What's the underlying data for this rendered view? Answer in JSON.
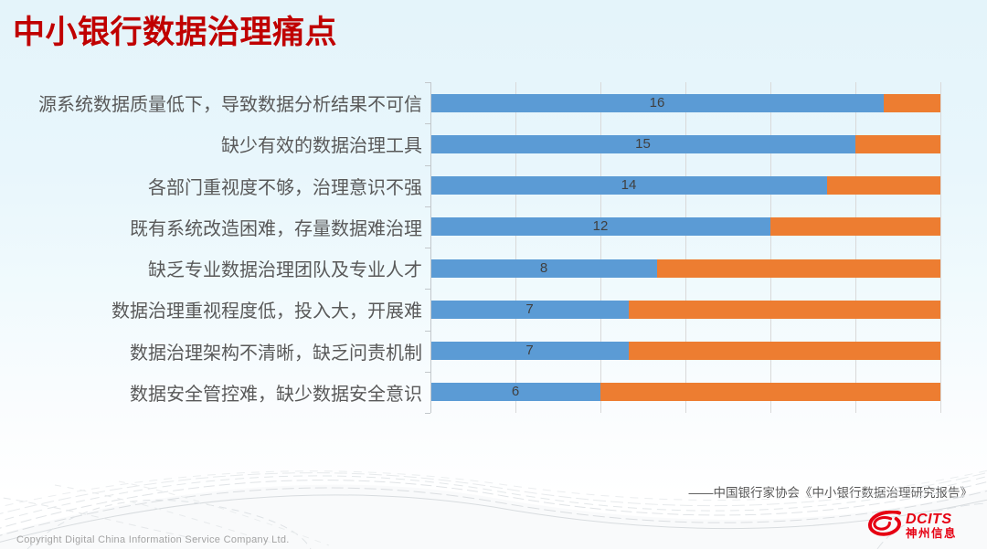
{
  "slide": {
    "title": "中小银行数据治理痛点",
    "source_citation": "——中国银行家协会《中小银行数据治理研究报告》",
    "copyright": "Copyright  Digital China Information Service Company Ltd."
  },
  "logo": {
    "brand": "DCITS",
    "brand_cn": "神州信息",
    "brand_color": "#e60012",
    "icon": "swirl-logo-icon"
  },
  "chart_data": {
    "type": "bar",
    "orientation": "horizontal",
    "stacked": true,
    "categories": [
      "源系统数据质量低下，导致数据分析结果不可信",
      "缺少有效的数据治理工具",
      "各部门重视度不够，治理意识不强",
      "既有系统改造困难，存量数据难治理",
      "缺乏专业数据治理团队及专业人才",
      "数据治理重视程度低，投入大，开展难",
      "数据治理架构不清晰，缺乏问责机制",
      "数据安全管控难，缺少数据安全意识"
    ],
    "series": [
      {
        "name": "series-1-blue",
        "color": "#5b9bd5",
        "values": [
          16,
          15,
          14,
          12,
          8,
          7,
          7,
          6
        ]
      },
      {
        "name": "series-2-orange",
        "color": "#ed7d31",
        "values": [
          2,
          3,
          4,
          6,
          10,
          11,
          11,
          12
        ]
      }
    ],
    "total": 18,
    "xlim": [
      0,
      18
    ],
    "gridline_interval": 3,
    "grid": true,
    "legend": "none",
    "value_labels": {
      "series": "series-1-blue",
      "position": "center-of-blue-segment",
      "color": "#404040"
    },
    "gridline_color": "#d9d9d9",
    "axis_color": "#c2c7cb",
    "category_label_color": "#595959"
  }
}
